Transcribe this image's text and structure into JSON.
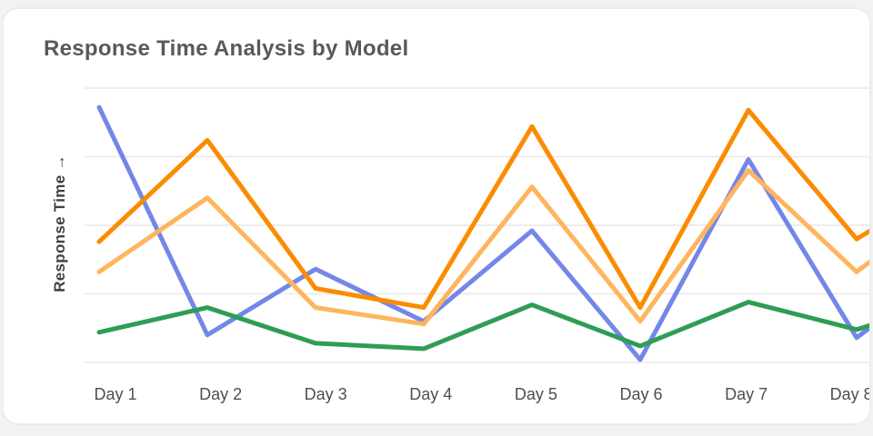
{
  "card": {
    "title": "Response Time Analysis by Model"
  },
  "chart_data": {
    "type": "line",
    "title": "Response Time Analysis by Model",
    "xlabel": "",
    "ylabel": "Response Time →",
    "categories": [
      "Day 1",
      "Day 2",
      "Day 3",
      "Day 4",
      "Day 5",
      "Day 6",
      "Day 7",
      "Day 8"
    ],
    "ylim": [
      0,
      100
    ],
    "y_tick_labels_visible": false,
    "gridlines": "horizontal",
    "gridline_values": [
      0,
      25,
      50,
      75,
      100
    ],
    "legend": "none",
    "clipped_at_right_edge": true,
    "series": [
      {
        "name": "blue",
        "color": "#7287e8",
        "values": [
          93,
          10,
          34,
          15,
          48,
          1,
          74,
          9
        ],
        "edge_value": 14
      },
      {
        "name": "orange",
        "color": "#fb8c00",
        "values": [
          44,
          81,
          27,
          20,
          86,
          20,
          92,
          45
        ],
        "edge_value": 49
      },
      {
        "name": "light-orange",
        "color": "#ffb45e",
        "values": [
          33,
          60,
          20,
          14,
          64,
          15,
          70,
          33
        ],
        "edge_value": 38
      },
      {
        "name": "green",
        "color": "#2e9d55",
        "values": [
          11,
          20,
          7,
          5,
          21,
          6,
          22,
          12
        ],
        "edge_value": 14
      }
    ]
  }
}
